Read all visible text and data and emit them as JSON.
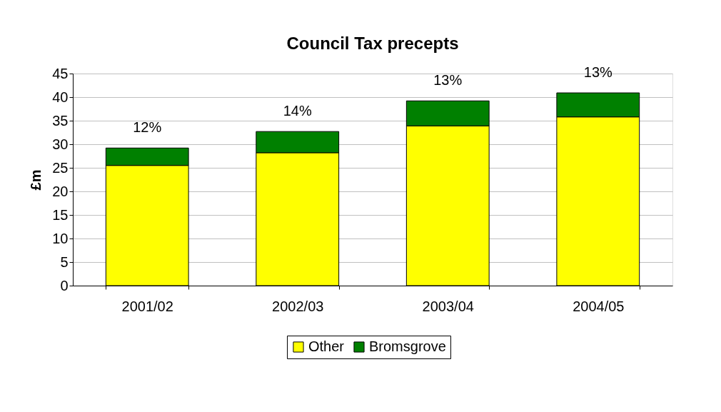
{
  "chart_data": {
    "type": "bar",
    "title": "Council Tax precepts",
    "ylabel": "£m",
    "categories": [
      "2001/02",
      "2002/03",
      "2003/04",
      "2004/05"
    ],
    "series": [
      {
        "name": "Other",
        "color": "#ffff00",
        "values": [
          25.5,
          28.2,
          33.9,
          35.8
        ]
      },
      {
        "name": "Bromsgrove",
        "color": "#008000",
        "values": [
          3.7,
          4.5,
          5.3,
          5.1
        ]
      }
    ],
    "stacked": true,
    "annotations": [
      {
        "text": "12%",
        "x": "2001/02",
        "y": 29.2
      },
      {
        "text": "14%",
        "x": "2002/03",
        "y": 32.7
      },
      {
        "text": "13%",
        "x": "2003/04",
        "y": 39.2
      },
      {
        "text": "13%",
        "x": "2004/05",
        "y": 40.9
      }
    ],
    "ylim": [
      0,
      45
    ],
    "yticks": [
      0,
      5,
      10,
      15,
      20,
      25,
      30,
      35,
      40,
      45
    ],
    "grid": "y",
    "legend": "bottom"
  }
}
